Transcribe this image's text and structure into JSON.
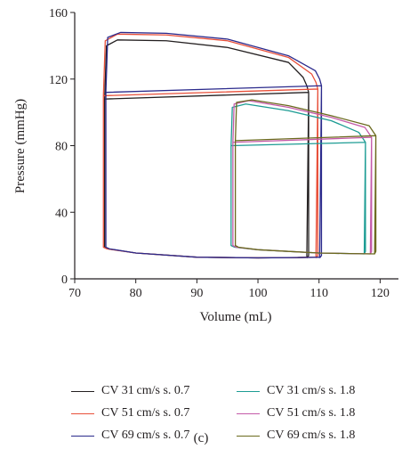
{
  "chart_data": {
    "type": "line",
    "xlabel": "Volume (mL)",
    "ylabel": "Pressure (mmHg)",
    "xlim": [
      70,
      123
    ],
    "ylim": [
      0,
      160
    ],
    "xticks": [
      70,
      80,
      90,
      100,
      110,
      120
    ],
    "yticks": [
      0,
      40,
      80,
      120,
      160
    ],
    "grid": false,
    "legend_placement": "bottom",
    "series": [
      {
        "name": "CV 31 cm/s s. 0.7",
        "color": "#231f20",
        "x": [
          108,
          108.3,
          108.3,
          74.9,
          75.2,
          77,
          85,
          95,
          105,
          107.4,
          108,
          108.3,
          108,
          106.5,
          100,
          90,
          80,
          75.5,
          74.9,
          74.9
        ],
        "y": [
          12.5,
          14,
          112,
          108,
          140,
          143.5,
          143,
          139,
          130,
          121,
          116,
          112,
          13,
          12.8,
          12.6,
          13,
          15.5,
          18,
          19,
          108
        ]
      },
      {
        "name": "CV 51 cm/s s. 0.7",
        "color": "#e8503a",
        "x": [
          109.5,
          109.8,
          109.8,
          74.7,
          75,
          77,
          85,
          95,
          105,
          108.8,
          109.5,
          109.8,
          109.5,
          107,
          100,
          90,
          80,
          75.3,
          74.7,
          74.7
        ],
        "y": [
          12.5,
          14,
          114,
          110,
          143,
          147,
          146.5,
          143,
          133,
          123,
          118,
          114,
          13,
          12.8,
          12.6,
          13,
          15.5,
          18,
          19,
          110
        ]
      },
      {
        "name": "CV 69 cm/s s. 0.7",
        "color": "#2b2a8c",
        "x": [
          110.1,
          110.4,
          110.4,
          75.1,
          75.4,
          77.5,
          85,
          95,
          105,
          109.4,
          110.1,
          110.4,
          110.1,
          107.5,
          100,
          90,
          80,
          75.7,
          75.1,
          75.1
        ],
        "y": [
          12.5,
          14,
          116,
          112,
          145,
          148,
          147.5,
          144,
          134,
          125,
          120,
          116,
          13,
          12.8,
          12.6,
          13,
          15.5,
          18,
          19,
          112
        ]
      },
      {
        "name": "CV 31 cm/s s. 1.8",
        "color": "#1d9c94",
        "x": [
          117.4,
          117.6,
          117.6,
          95.6,
          95.8,
          98,
          105,
          112,
          116.5,
          117.6,
          117.4,
          115,
          110,
          105,
          100,
          96.2,
          95.6,
          95.6
        ],
        "y": [
          15,
          16.5,
          82,
          80,
          103,
          105,
          101,
          95,
          88,
          82,
          15,
          15.2,
          15.5,
          16.5,
          17.5,
          19,
          20,
          80
        ]
      },
      {
        "name": "CV 51 cm/s s. 1.8",
        "color": "#c45aa8",
        "x": [
          118.4,
          118.6,
          118.6,
          95.9,
          96.1,
          98.5,
          105,
          112,
          117.5,
          118.6,
          118.4,
          115,
          110,
          105,
          100,
          96.4,
          95.9,
          95.9
        ],
        "y": [
          15,
          16.5,
          85,
          82,
          105,
          107,
          103,
          97,
          91,
          85,
          15,
          15.2,
          15.5,
          16.5,
          17.5,
          19,
          20,
          82
        ]
      },
      {
        "name": "CV 69 cm/s s. 1.8",
        "color": "#6b6a1e",
        "x": [
          119.1,
          119.3,
          119.3,
          96.3,
          96.5,
          99,
          105,
          112,
          118.2,
          119.3,
          119.1,
          115,
          110,
          105,
          100,
          96.8,
          96.3,
          96.3
        ],
        "y": [
          15,
          16.5,
          86,
          83,
          106,
          107.5,
          104,
          98,
          92,
          86,
          15,
          15.2,
          15.5,
          16.5,
          17.5,
          19,
          20,
          83
        ]
      }
    ]
  },
  "caption": "(c)"
}
